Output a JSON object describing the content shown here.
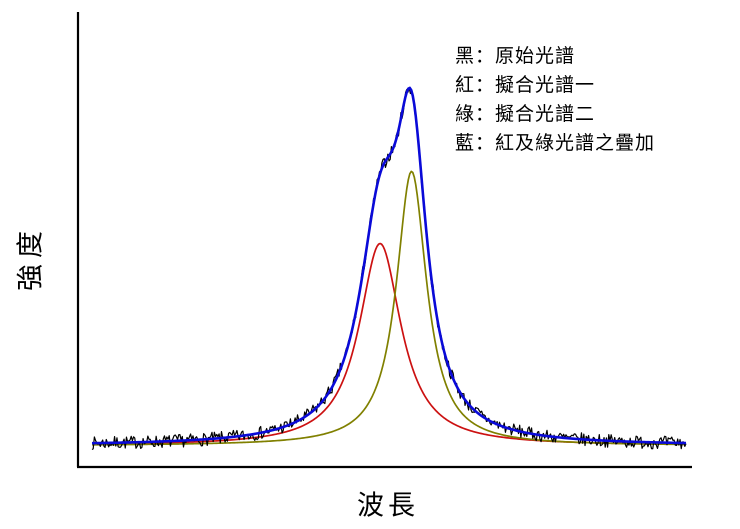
{
  "chart_data": {
    "type": "line",
    "title": "",
    "xlabel": "波長",
    "ylabel": "強度",
    "x_range": [
      0,
      100
    ],
    "y_range": [
      0,
      1.15
    ],
    "baseline": 0.012,
    "axes_color": "#000000",
    "grid": false,
    "noise": {
      "amplitude": 0.018,
      "seed": 7,
      "step": 0.2
    },
    "peaks": [
      {
        "id": "peak0",
        "center": 48.5,
        "hwhm": 4.3,
        "amplitude": 0.56
      },
      {
        "id": "peak1",
        "center": 53.8,
        "hwhm": 3.1,
        "amplitude": 0.76
      }
    ],
    "series": [
      {
        "name": "原始光譜",
        "color": "#000000",
        "width": 1.2,
        "role": "sum_plus_noise"
      },
      {
        "name": "擬合光譜一",
        "color": "#cc1111",
        "width": 1.7,
        "role": "peak0"
      },
      {
        "name": "擬合光譜二",
        "color": "#808000",
        "width": 1.7,
        "role": "peak1"
      },
      {
        "name": "紅及綠光譜之疊加",
        "color": "#0a0ad8",
        "width": 2.6,
        "role": "sum"
      }
    ],
    "legend": {
      "position": "top-right",
      "items": [
        {
          "text": "黑：原始光譜"
        },
        {
          "text": "紅：擬合光譜一"
        },
        {
          "text": "綠：擬合光譜二"
        },
        {
          "text": "藍：紅及綠光譜之疊加"
        }
      ]
    }
  }
}
